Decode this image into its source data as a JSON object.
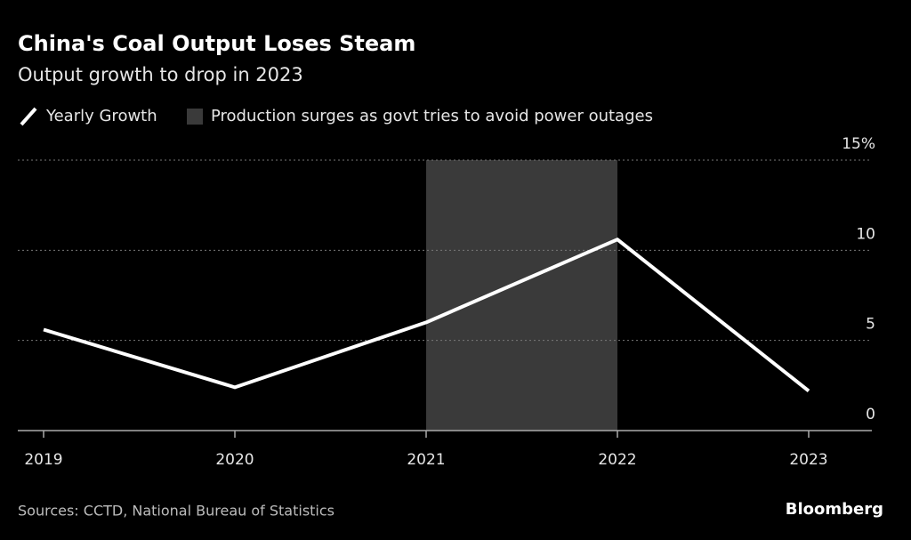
{
  "chart_data": {
    "type": "line",
    "title": "China's Coal Output Loses Steam",
    "subtitle": "Output growth to drop in 2023",
    "categories": [
      "2019",
      "2020",
      "2021",
      "2022",
      "2023"
    ],
    "series": [
      {
        "name": "Yearly Growth",
        "color": "#ffffff",
        "values": [
          5.6,
          2.4,
          6.0,
          10.6,
          2.2
        ]
      }
    ],
    "highlight": {
      "label": "Production surges as govt tries to avoid power outages",
      "from": "2021",
      "to": "2022",
      "color": "#3a3a3a"
    },
    "ylim": [
      0,
      15
    ],
    "yticks": [
      0,
      5,
      10,
      {
        "value": 15,
        "label": "15%"
      }
    ],
    "grid": true,
    "source": "Sources: CCTD, National Bureau of Statistics",
    "brand": "Bloomberg"
  }
}
